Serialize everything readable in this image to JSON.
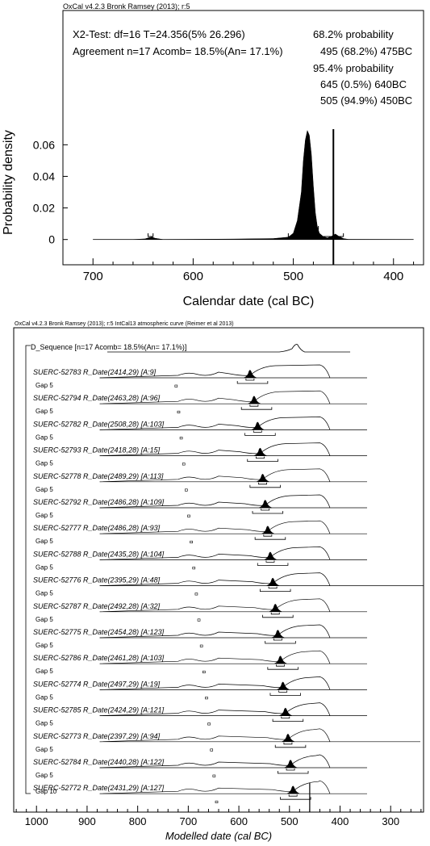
{
  "chart_data": [
    {
      "type": "area",
      "header": "OxCal v4.2.3 Bronk Ramsey (2013); r:5",
      "test_line": "X2-Test: df=16 T=24.356(5% 26.296)",
      "agreement_line": "Agreement n=17 Acomb= 18.5%(An= 17.1%)",
      "ranges": [
        "68.2% probability",
        "495 (68.2%) 475BC",
        "95.4% probability",
        "645 (0.5%) 640BC",
        "505 (94.9%) 450BC"
      ],
      "ylabel": "Probability density",
      "xlabel": "Calendar date (cal BC)",
      "x_ticks": [
        700,
        600,
        500,
        400
      ],
      "y_ticks": [
        0,
        0.02,
        0.04,
        0.06
      ],
      "y_tick_labels": [
        "0",
        "0.02",
        "0.04",
        "0.06"
      ],
      "xlim": [
        730,
        370
      ],
      "ylim": [
        -0.016,
        0.075
      ],
      "x_reversed": true,
      "vertical_line_at": 460,
      "range_68": [
        495,
        475
      ],
      "range_95": [
        [
          645,
          640
        ],
        [
          505,
          450
        ]
      ],
      "series": [
        {
          "x": [
            700,
            660,
            648,
            644,
            641,
            638,
            630,
            560,
            520,
            505,
            500,
            496,
            492,
            490,
            488,
            486,
            484,
            482,
            480,
            478,
            476,
            474,
            470,
            466,
            462,
            458,
            455,
            450,
            445,
            380
          ],
          "y": [
            0,
            0,
            0.0004,
            0.0012,
            0.0015,
            0.0008,
            0,
            0.0003,
            0.0006,
            0.0015,
            0.004,
            0.012,
            0.03,
            0.05,
            0.063,
            0.069,
            0.066,
            0.054,
            0.034,
            0.017,
            0.008,
            0.004,
            0.0018,
            0.001,
            0.002,
            0.0035,
            0.0022,
            0.0006,
            0.0001,
            0
          ]
        }
      ]
    },
    {
      "type": "area",
      "header": "OxCal v4.2.3 Bronk Ramsey (2013); r:5 IntCal13 atmospheric curve (Reimer et al 2013)",
      "sequence_label": "D_Sequence [n=17 Acomb= 18.5%(An= 17.1%)]",
      "xlabel": "Modelled date (cal BC)",
      "x_ticks": [
        1000,
        900,
        800,
        700,
        600,
        500,
        400,
        300
      ],
      "xlim": [
        1045,
        235
      ],
      "x_reversed": true,
      "vertical_line_at": 460,
      "gap_final": "Gap 10",
      "items": [
        {
          "label": "SUERC-52783 R_Date(2414,29) [A:9]",
          "peak": 578,
          "gap": "Gap 5",
          "gap_x": 724
        },
        {
          "label": "SUERC-52794 R_Date(2463,28) [A:96]",
          "peak": 570,
          "gap": "Gap 5",
          "gap_x": 719
        },
        {
          "label": "SUERC-52782 R_Date(2508,28) [A:103]",
          "peak": 563,
          "gap": "Gap 5",
          "gap_x": 714
        },
        {
          "label": "SUERC-52793 R_Date(2418,28) [A:15]",
          "peak": 558,
          "gap": "Gap 5",
          "gap_x": 709
        },
        {
          "label": "SUERC-52778 R_Date(2489,29) [A:113]",
          "peak": 553,
          "gap": "Gap 5",
          "gap_x": 704
        },
        {
          "label": "SUERC-52792 R_Date(2486,28) [A:109]",
          "peak": 548,
          "gap": "Gap 5",
          "gap_x": 699
        },
        {
          "label": "SUERC-52777 R_Date(2486,28) [A:93]",
          "peak": 543,
          "gap": "Gap 5",
          "gap_x": 694
        },
        {
          "label": "SUERC-52788 R_Date(2435,28) [A:104]",
          "peak": 538,
          "gap": "Gap 5",
          "gap_x": 689
        },
        {
          "label": "SUERC-52776 R_Date(2395,29) [A:48]",
          "peak": 533,
          "gap": "Gap 5",
          "gap_x": 684
        },
        {
          "label": "SUERC-52787 R_Date(2492,28) [A:32]",
          "peak": 528,
          "gap": "Gap 5",
          "gap_x": 679
        },
        {
          "label": "SUERC-52775 R_Date(2454,28) [A:123]",
          "peak": 523,
          "gap": "Gap 5",
          "gap_x": 674
        },
        {
          "label": "SUERC-52786 R_Date(2461,28) [A:103]",
          "peak": 518,
          "gap": "Gap 5",
          "gap_x": 669
        },
        {
          "label": "SUERC-52774 R_Date(2497,29) [A:19]",
          "peak": 513,
          "gap": "Gap 5",
          "gap_x": 664
        },
        {
          "label": "SUERC-52785 R_Date(2424,29) [A:121]",
          "peak": 508,
          "gap": "Gap 5",
          "gap_x": 659
        },
        {
          "label": "SUERC-52773 R_Date(2397,29) [A:94]",
          "peak": 503,
          "gap": "Gap 5",
          "gap_x": 654
        },
        {
          "label": "SUERC-52784 R_Date(2440,28) [A:122]",
          "peak": 498,
          "gap": "Gap 5",
          "gap_x": 649
        },
        {
          "label": "SUERC-52772 R_Date(2431,29) [A:127]",
          "peak": 493,
          "gap": "",
          "gap_x": 644
        }
      ]
    }
  ]
}
